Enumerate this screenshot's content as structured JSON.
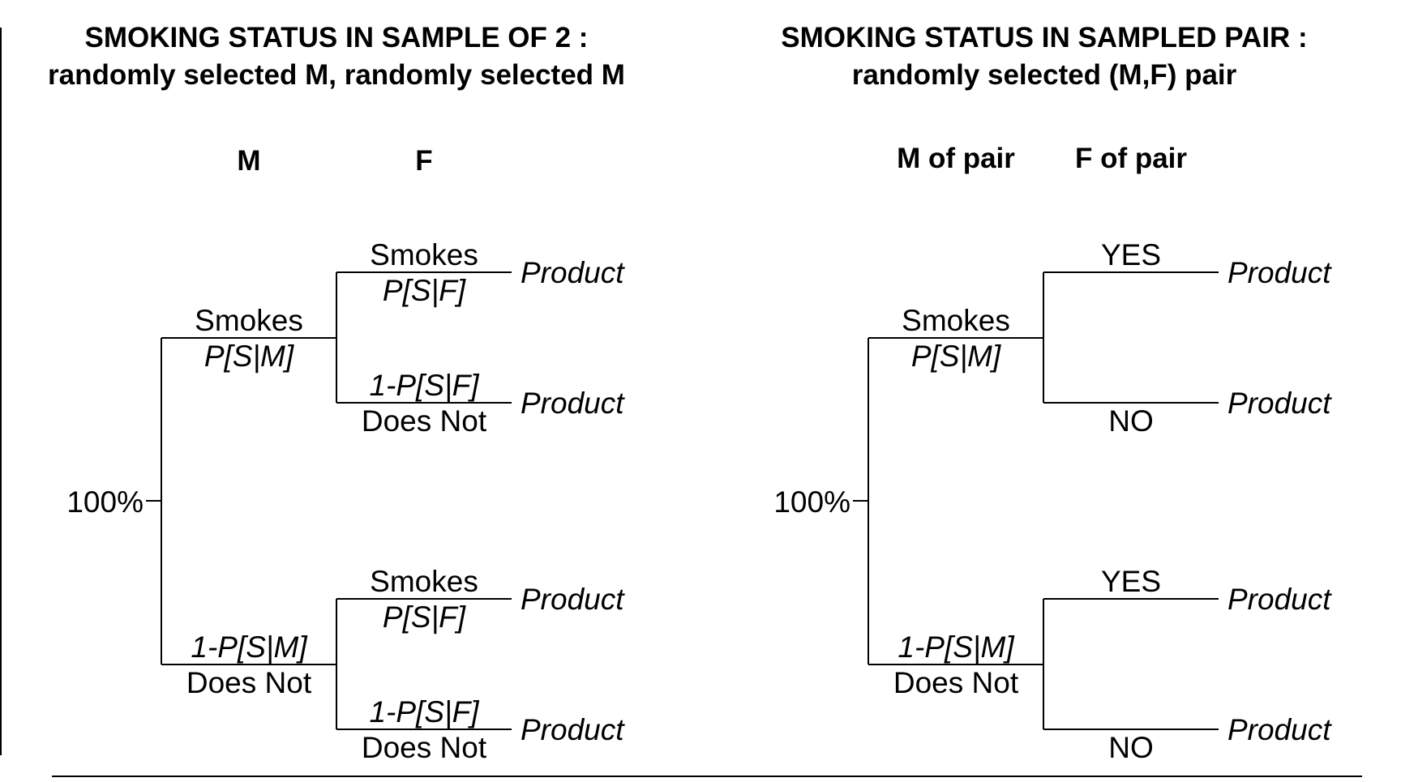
{
  "left_panel": {
    "title_line1": "SMOKING STATUS IN SAMPLE OF 2  :",
    "title_line2": "randomly selected M, randomly selected M",
    "col1_header": "M",
    "col2_header": "F",
    "root_label": "100%",
    "upper_branch": {
      "label": "Smokes",
      "prob": "P[S|M]"
    },
    "lower_branch": {
      "prob": "1-P[S|M]",
      "label": "Does Not"
    },
    "upper_yes": {
      "label": "Smokes",
      "prob": "P[S|F]",
      "result": "Product"
    },
    "upper_no": {
      "prob": "1-P[S|F]",
      "label": "Does Not",
      "result": "Product"
    },
    "lower_yes": {
      "label": "Smokes",
      "prob": "P[S|F]",
      "result": "Product"
    },
    "lower_no": {
      "prob": "1-P[S|F]",
      "label": "Does Not",
      "result": "Product"
    }
  },
  "right_panel": {
    "title_line1": "SMOKING STATUS IN SAMPLED PAIR  :",
    "title_line2": "randomly selected (M,F) pair",
    "col1_header": "M of pair",
    "col2_header": "F of pair",
    "root_label": "100%",
    "upper_branch": {
      "label": "Smokes",
      "prob": "P[S|M]"
    },
    "lower_branch": {
      "prob": "1-P[S|M]",
      "label": "Does Not"
    },
    "upper_yes": {
      "label": "YES",
      "result": "Product"
    },
    "upper_no": {
      "label": "NO",
      "result": "Product"
    },
    "lower_yes": {
      "label": "YES",
      "result": "Product"
    },
    "lower_no": {
      "label": "NO",
      "result": "Product"
    }
  }
}
